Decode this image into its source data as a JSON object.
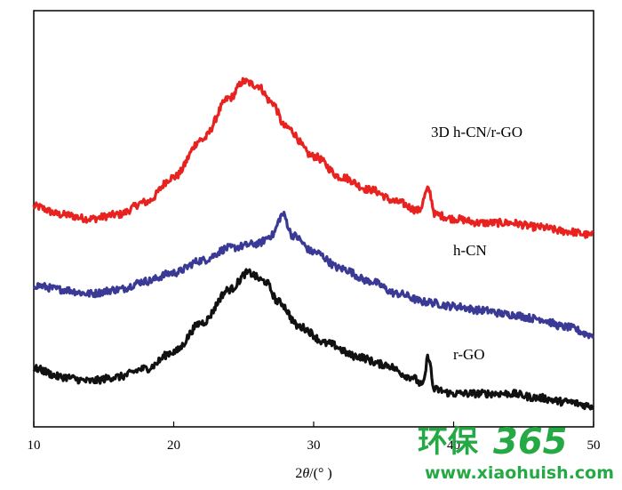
{
  "chart_data": {
    "type": "line",
    "x_range": [
      10,
      50
    ],
    "x_ticks": [
      "10",
      "20",
      "30",
      "40",
      "50"
    ],
    "xlabel_prefix": "2",
    "xlabel_theta": "θ",
    "xlabel_suffix": "/(° )",
    "ylabel": "",
    "series": [
      {
        "name": "3D h-CN/r-GO",
        "color": "#e8221e",
        "points": [
          [
            10,
            0.53
          ],
          [
            12,
            0.51
          ],
          [
            14,
            0.5
          ],
          [
            16,
            0.51
          ],
          [
            18,
            0.54
          ],
          [
            20,
            0.6
          ],
          [
            22,
            0.69
          ],
          [
            24,
            0.79
          ],
          [
            25,
            0.83
          ],
          [
            26,
            0.82
          ],
          [
            27,
            0.78
          ],
          [
            28,
            0.72
          ],
          [
            30,
            0.65
          ],
          [
            32,
            0.6
          ],
          [
            34,
            0.57
          ],
          [
            36,
            0.54
          ],
          [
            37.5,
            0.52
          ],
          [
            38.2,
            0.57
          ],
          [
            38.7,
            0.51
          ],
          [
            40,
            0.5
          ],
          [
            42,
            0.49
          ],
          [
            44,
            0.49
          ],
          [
            46,
            0.48
          ],
          [
            48,
            0.47
          ],
          [
            50,
            0.46
          ]
        ]
      },
      {
        "name": "h-CN",
        "color": "#3a3a96",
        "points": [
          [
            10,
            0.34
          ],
          [
            12,
            0.33
          ],
          [
            14,
            0.32
          ],
          [
            16,
            0.33
          ],
          [
            18,
            0.35
          ],
          [
            20,
            0.37
          ],
          [
            22,
            0.4
          ],
          [
            24,
            0.43
          ],
          [
            26,
            0.44
          ],
          [
            27,
            0.46
          ],
          [
            27.8,
            0.51
          ],
          [
            28.5,
            0.46
          ],
          [
            30,
            0.42
          ],
          [
            32,
            0.38
          ],
          [
            34,
            0.35
          ],
          [
            36,
            0.32
          ],
          [
            38,
            0.3
          ],
          [
            40,
            0.29
          ],
          [
            42,
            0.28
          ],
          [
            44,
            0.27
          ],
          [
            46,
            0.26
          ],
          [
            48,
            0.24
          ],
          [
            50,
            0.22
          ]
        ]
      },
      {
        "name": "r-GO",
        "color": "#111111",
        "points": [
          [
            10,
            0.14
          ],
          [
            12,
            0.12
          ],
          [
            14,
            0.11
          ],
          [
            16,
            0.12
          ],
          [
            18,
            0.14
          ],
          [
            20,
            0.18
          ],
          [
            22,
            0.25
          ],
          [
            24,
            0.33
          ],
          [
            25.3,
            0.37
          ],
          [
            26.5,
            0.35
          ],
          [
            27.5,
            0.3
          ],
          [
            29,
            0.24
          ],
          [
            31,
            0.2
          ],
          [
            33,
            0.17
          ],
          [
            35,
            0.15
          ],
          [
            37,
            0.12
          ],
          [
            37.8,
            0.1
          ],
          [
            38.2,
            0.17
          ],
          [
            38.6,
            0.09
          ],
          [
            40,
            0.08
          ],
          [
            42,
            0.08
          ],
          [
            44,
            0.08
          ],
          [
            46,
            0.07
          ],
          [
            48,
            0.06
          ],
          [
            50,
            0.05
          ]
        ]
      }
    ]
  },
  "watermark": {
    "chinese": "环保",
    "number": "365",
    "url": "www.xiaohuish.com",
    "color": "#1aa53c"
  }
}
